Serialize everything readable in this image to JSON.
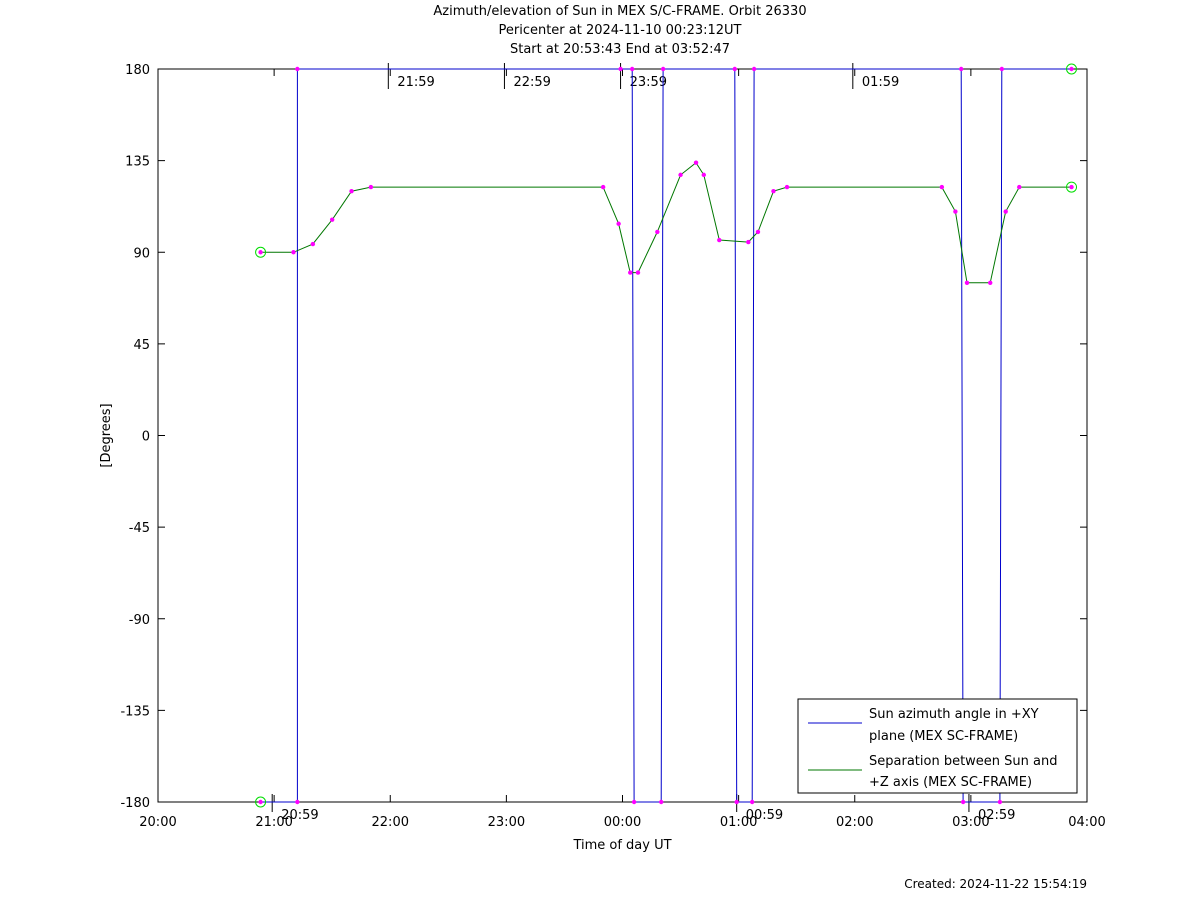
{
  "chart_data": {
    "type": "line",
    "title": "Azimuth/elevation of Sun in MEX S/C-FRAME.  Orbit 26330",
    "subtitle_1": "Pericenter at 2024-11-10 00:23:12UT",
    "subtitle_2": "Start at 20:53:43 End at 03:52:47",
    "xlabel": "Time of day UT",
    "ylabel": "[Degrees]",
    "xlim": [
      "20:00",
      "04:00"
    ],
    "ylim": [
      -180,
      180
    ],
    "grid": false,
    "legend_position": "bottom-right",
    "x_ticks": [
      "20:00",
      "21:00",
      "22:00",
      "23:00",
      "00:00",
      "01:00",
      "02:00",
      "03:00",
      "04:00"
    ],
    "y_ticks": [
      "180",
      "135",
      "90",
      "45",
      "0",
      "-45",
      "-90",
      "-135",
      "-180"
    ],
    "top_annotations": [
      "21:59",
      "22:59",
      "23:59",
      "01:59"
    ],
    "bottom_annotations": [
      "20:59",
      "00:59",
      "02:59"
    ],
    "series": [
      {
        "name": "Sun azimuth angle in +XY plane (MEX SC-FRAME)",
        "color": "#0000cc",
        "points": [
          [
            "20:53",
            -180
          ],
          [
            "21:12",
            -180
          ],
          [
            "21:12",
            180
          ],
          [
            "23:59",
            180
          ],
          [
            "00:05",
            180
          ],
          [
            "00:06",
            -180
          ],
          [
            "00:20",
            -180
          ],
          [
            "00:21",
            180
          ],
          [
            "00:58",
            180
          ],
          [
            "00:59",
            -180
          ],
          [
            "01:07",
            -180
          ],
          [
            "01:08",
            180
          ],
          [
            "02:55",
            180
          ],
          [
            "02:56",
            -180
          ],
          [
            "03:15",
            -180
          ],
          [
            "03:16",
            180
          ],
          [
            "03:52",
            180
          ]
        ]
      },
      {
        "name": "Separation between Sun and +Z axis (MEX SC-FRAME)",
        "color": "#007700",
        "points": [
          [
            "20:53",
            90
          ],
          [
            "21:10",
            90
          ],
          [
            "21:20",
            94
          ],
          [
            "21:30",
            106
          ],
          [
            "21:40",
            120
          ],
          [
            "21:50",
            122
          ],
          [
            "23:50",
            122
          ],
          [
            "23:58",
            104
          ],
          [
            "00:04",
            80
          ],
          [
            "00:08",
            80
          ],
          [
            "00:18",
            100
          ],
          [
            "00:30",
            128
          ],
          [
            "00:38",
            134
          ],
          [
            "00:42",
            128
          ],
          [
            "00:50",
            96
          ],
          [
            "01:05",
            95
          ],
          [
            "01:10",
            100
          ],
          [
            "01:18",
            120
          ],
          [
            "01:25",
            122
          ],
          [
            "02:45",
            122
          ],
          [
            "02:52",
            110
          ],
          [
            "02:58",
            75
          ],
          [
            "03:10",
            75
          ],
          [
            "03:18",
            110
          ],
          [
            "03:25",
            122
          ],
          [
            "03:52",
            122
          ]
        ]
      }
    ],
    "marker_color": "#ff00ff",
    "endpoint_marker_color": "#00dd00"
  },
  "footer": {
    "created": "Created: 2024-11-22 15:54:19"
  }
}
